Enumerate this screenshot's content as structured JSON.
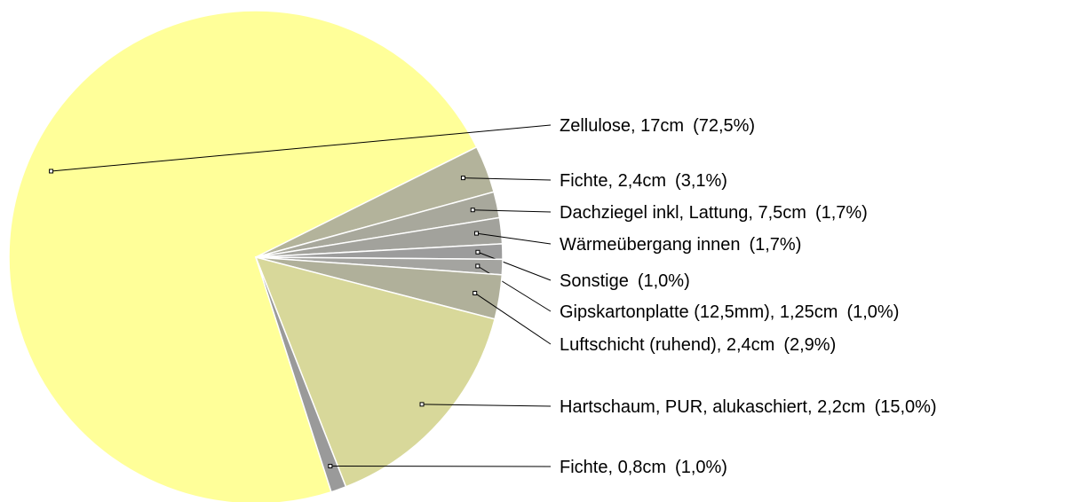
{
  "chart_data": {
    "type": "pie",
    "categories": [
      "Zellulose, 17cm",
      "Fichte, 2,4cm",
      "Dachziegel inkl, Lattung, 7,5cm",
      "Wärmeübergang innen",
      "Sonstige",
      "Gipskartonplatte (12,5mm), 1,25cm",
      "Luftschicht (ruhend), 2,4cm",
      "Hartschaum, PUR, alukaschiert, 2,2cm",
      "Fichte, 0,8cm"
    ],
    "values": [
      72.5,
      3.1,
      1.7,
      1.7,
      1.0,
      1.0,
      2.9,
      15.0,
      1.0
    ],
    "value_labels": [
      "(72,5%)",
      "(3,1%)",
      "(1,7%)",
      "(1,7%)",
      "(1,0%)",
      "(1,0%)",
      "(2,9%)",
      "(15,0%)",
      "(1,0%)"
    ],
    "colors": [
      "#ffff99",
      "#b3b39b",
      "#a8a89c",
      "#a2a29c",
      "#9c9c9c",
      "#a4a4a0",
      "#b0b09a",
      "#d8d89a",
      "#9a9a9a"
    ]
  }
}
